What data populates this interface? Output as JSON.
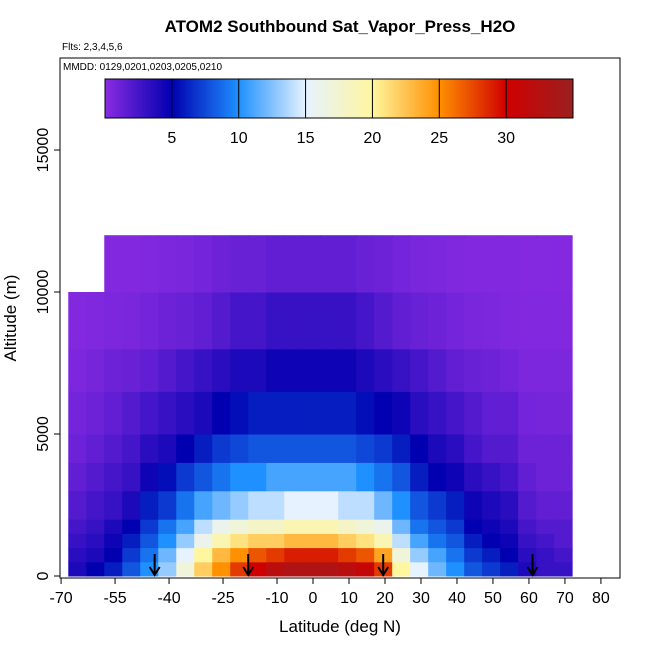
{
  "chart_data": {
    "type": "heatmap",
    "title": "ATOM2 Southbound Sat_Vapor_Press_H2O",
    "subtitle": "Flts: 2,3,4,5,6",
    "annotation": "MMDD: 0129,0201,0203,0205,0210",
    "x_label": "Latitude (deg N)",
    "y_label": "Altitude (m)",
    "xlim": [
      -70.3,
      85.3
    ],
    "ylim": [
      -70,
      18240
    ],
    "xticks": [
      -70,
      -55,
      -40,
      -25,
      -10,
      0,
      10,
      20,
      30,
      40,
      50,
      60,
      70,
      80
    ],
    "yticks": [
      0,
      5000,
      10000,
      15000
    ],
    "x_edges": [
      -68,
      -63,
      -58,
      -53,
      -48,
      -43,
      -38,
      -33,
      -28,
      -23,
      -18,
      -13,
      -8,
      -3,
      2,
      7,
      12,
      17,
      22,
      27,
      32,
      37,
      42,
      47,
      52,
      57,
      62,
      67,
      72
    ],
    "y_edges": [
      0,
      500,
      1000,
      1500,
      2000,
      3000,
      4000,
      5000,
      6500,
      8000,
      10000,
      12000
    ],
    "z": [
      [
        4,
        5,
        6,
        8,
        10,
        13,
        17,
        22,
        25,
        28,
        30,
        32,
        33,
        33,
        33,
        32,
        31,
        28,
        20,
        15,
        12,
        10,
        8,
        7,
        6,
        4,
        3,
        3
      ],
      [
        3.5,
        4,
        5,
        7,
        9,
        12,
        15,
        20,
        23,
        25,
        27,
        28,
        29,
        29,
        29,
        28,
        27,
        24,
        17,
        13,
        11,
        9,
        7,
        6,
        5,
        3.5,
        3,
        2.5
      ],
      [
        3,
        3.5,
        4.5,
        6,
        8,
        10,
        13,
        16,
        19,
        21,
        22,
        22,
        23,
        23,
        23,
        22,
        21,
        19,
        14,
        11,
        9,
        8,
        6,
        5,
        4.5,
        3,
        2.5,
        2
      ],
      [
        2.5,
        3,
        4,
        5,
        7,
        9,
        11,
        14,
        16,
        17,
        18,
        18,
        19,
        19,
        19,
        18,
        17,
        16,
        12,
        9,
        8,
        7,
        5,
        4.5,
        4,
        2.5,
        2,
        2
      ],
      [
        2,
        2.5,
        3,
        4,
        6,
        7,
        9,
        11,
        12,
        13,
        14,
        14,
        15,
        15,
        15,
        14,
        14,
        12,
        10,
        8,
        7,
        6,
        4.5,
        4,
        3.5,
        2,
        1.5,
        1.5
      ],
      [
        1.5,
        2,
        2.5,
        3,
        4.5,
        5.5,
        7,
        8,
        9,
        10,
        10,
        11,
        11,
        11,
        11,
        11,
        10,
        9,
        8,
        6,
        5,
        4.5,
        3.5,
        3,
        2.5,
        1.5,
        1,
        1
      ],
      [
        1,
        1.5,
        2,
        2.5,
        3.5,
        4,
        5,
        6,
        7,
        7.5,
        8,
        8,
        8,
        8,
        8,
        8,
        7.5,
        7,
        6,
        5,
        4,
        3.5,
        2.5,
        2,
        2,
        1,
        1,
        1
      ],
      [
        0.8,
        1,
        1.5,
        2,
        2.5,
        3,
        3.5,
        4,
        5,
        5.5,
        6,
        6,
        6,
        6,
        6,
        6,
        5.5,
        5,
        4.5,
        3.5,
        3,
        2.5,
        2,
        1.5,
        1.5,
        0.8,
        0.7,
        0.7
      ],
      [
        0.5,
        0.7,
        1,
        1.2,
        1.5,
        2,
        2.5,
        3,
        3.5,
        4,
        4,
        4.5,
        4.5,
        4.5,
        4.5,
        4.5,
        4,
        3.5,
        3,
        2.5,
        2,
        1.5,
        1.2,
        1,
        0.8,
        0.5,
        0.5,
        0.5
      ],
      [
        0.3,
        0.4,
        0.5,
        0.6,
        0.8,
        1,
        1.2,
        1.5,
        2,
        2.5,
        2.5,
        3,
        3,
        3,
        3,
        3,
        2.5,
        2,
        1.5,
        1.2,
        1,
        0.8,
        0.6,
        0.5,
        0.4,
        0.3,
        0.3,
        0.3
      ],
      [
        null,
        null,
        0.3,
        0.3,
        0.4,
        0.5,
        0.6,
        0.8,
        1,
        1.2,
        1.2,
        1.5,
        1.5,
        1.5,
        1.5,
        1.5,
        1.2,
        1,
        0.8,
        0.6,
        0.5,
        0.4,
        0.3,
        0.3,
        0.3,
        0.2,
        0.2,
        0.2
      ]
    ],
    "arrows_x": [
      -44,
      -18,
      19.5,
      61
    ],
    "colorbar": {
      "lim": [
        0,
        35
      ],
      "ticks": [
        5,
        10,
        15,
        20,
        25,
        30
      ],
      "stops": [
        [
          0,
          "#8a2be2"
        ],
        [
          5,
          "#0000b0"
        ],
        [
          10,
          "#1e90ff"
        ],
        [
          15,
          "#e6f2ff"
        ],
        [
          20,
          "#fff6a0"
        ],
        [
          25,
          "#ff9000"
        ],
        [
          30,
          "#d00000"
        ],
        [
          35,
          "#9a2020"
        ]
      ]
    }
  }
}
